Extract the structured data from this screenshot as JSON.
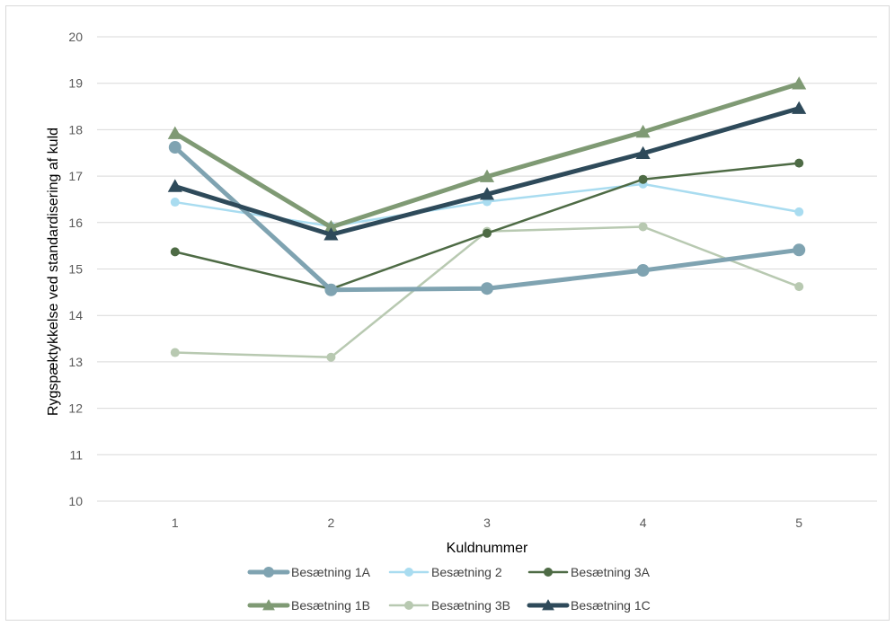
{
  "chart_data": {
    "type": "line",
    "xlabel": "Kuldnummer",
    "ylabel": "Rygspæktykkelse ved standardisering af kuld",
    "categories": [
      "1",
      "2",
      "3",
      "4",
      "5"
    ],
    "ylim": [
      10,
      20
    ],
    "yticks": [
      "10",
      "11",
      "12",
      "13",
      "14",
      "15",
      "16",
      "17",
      "18",
      "19",
      "20"
    ],
    "grid": true,
    "legend_position": "bottom",
    "series": [
      {
        "name": "Besætning 1A",
        "values": [
          17.62,
          14.55,
          14.58,
          14.97,
          15.41
        ],
        "color": "#7fa3b1",
        "marker": "circle",
        "weight": "thick"
      },
      {
        "name": "Besætning 2",
        "values": [
          16.44,
          15.92,
          16.45,
          16.83,
          16.23
        ],
        "color": "#a9dcf0",
        "marker": "circle",
        "weight": "thin"
      },
      {
        "name": "Besætning 3A",
        "values": [
          15.37,
          14.57,
          15.77,
          16.93,
          17.28
        ],
        "color": "#4e6b45",
        "marker": "circle",
        "weight": "thin"
      },
      {
        "name": "Besætning 1B",
        "values": [
          17.92,
          15.9,
          16.99,
          17.95,
          18.99
        ],
        "color": "#7f9a74",
        "marker": "triangle",
        "weight": "thick"
      },
      {
        "name": "Besætning 3B",
        "values": [
          13.2,
          13.1,
          15.81,
          15.91,
          14.62
        ],
        "color": "#b8c9b1",
        "marker": "circle",
        "weight": "thin"
      },
      {
        "name": "Besætning 1C",
        "values": [
          16.78,
          15.74,
          16.61,
          17.49,
          18.46
        ],
        "color": "#2e4a5a",
        "marker": "triangle",
        "weight": "thick"
      }
    ]
  }
}
